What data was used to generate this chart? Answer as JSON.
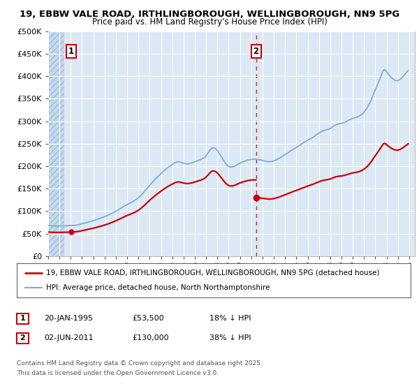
{
  "title_line1": "19, EBBW VALE ROAD, IRTHLINGBOROUGH, WELLINGBOROUGH, NN9 5PG",
  "title_line2": "Price paid vs. HM Land Registry's House Price Index (HPI)",
  "background_color": "#ffffff",
  "plot_bg_color": "#dce9f5",
  "grid_color": "#ffffff",
  "hpi_color": "#7aadd4",
  "price_color": "#cc0000",
  "ylim": [
    0,
    500000
  ],
  "yticks": [
    0,
    50000,
    100000,
    150000,
    200000,
    250000,
    300000,
    350000,
    400000,
    450000,
    500000
  ],
  "ytick_labels": [
    "£0",
    "£50K",
    "£100K",
    "£150K",
    "£200K",
    "£250K",
    "£300K",
    "£350K",
    "£400K",
    "£450K",
    "£500K"
  ],
  "sale1_x": 1995.05,
  "sale1_price": 53500,
  "sale2_x": 2011.42,
  "sale2_price": 130000,
  "legend_price_label": "19, EBBW VALE ROAD, IRTHLINGBOROUGH, WELLINGBOROUGH, NN9 5PG (detached house)",
  "legend_hpi_label": "HPI: Average price, detached house, North Northamptonshire",
  "footer": "Contains HM Land Registry data © Crown copyright and database right 2025.\nThis data is licensed under the Open Government Licence v3.0.",
  "xmin": 1993.0,
  "xmax": 2025.5
}
